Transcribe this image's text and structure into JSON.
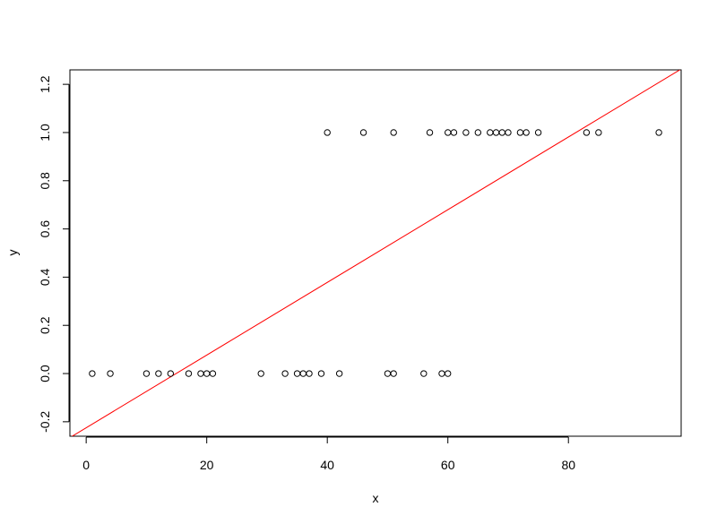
{
  "chart_data": {
    "type": "scatter",
    "title": "",
    "xlabel": "x",
    "ylabel": "y",
    "xlim": [
      -2.7,
      98.7
    ],
    "ylim": [
      -0.26,
      1.26
    ],
    "x_ticks": [
      0,
      20,
      40,
      60,
      80
    ],
    "y_ticks": [
      -0.2,
      0.0,
      0.2,
      0.4,
      0.6,
      0.8,
      1.0,
      1.2
    ],
    "grid": false,
    "legend": "none",
    "marker": "open-circle",
    "point_color": "#000000",
    "series": [
      {
        "points": [
          {
            "x": 1,
            "y": 0
          },
          {
            "x": 4,
            "y": 0
          },
          {
            "x": 10,
            "y": 0
          },
          {
            "x": 12,
            "y": 0
          },
          {
            "x": 14,
            "y": 0
          },
          {
            "x": 17,
            "y": 0
          },
          {
            "x": 19,
            "y": 0
          },
          {
            "x": 20,
            "y": 0
          },
          {
            "x": 21,
            "y": 0
          },
          {
            "x": 29,
            "y": 0
          },
          {
            "x": 33,
            "y": 0
          },
          {
            "x": 35,
            "y": 0
          },
          {
            "x": 36,
            "y": 0
          },
          {
            "x": 37,
            "y": 0
          },
          {
            "x": 39,
            "y": 0
          },
          {
            "x": 42,
            "y": 0
          },
          {
            "x": 50,
            "y": 0
          },
          {
            "x": 51,
            "y": 0
          },
          {
            "x": 56,
            "y": 0
          },
          {
            "x": 59,
            "y": 0
          },
          {
            "x": 60,
            "y": 0
          },
          {
            "x": 40,
            "y": 1
          },
          {
            "x": 46,
            "y": 1
          },
          {
            "x": 51,
            "y": 1
          },
          {
            "x": 57,
            "y": 1
          },
          {
            "x": 60,
            "y": 1
          },
          {
            "x": 61,
            "y": 1
          },
          {
            "x": 63,
            "y": 1
          },
          {
            "x": 65,
            "y": 1
          },
          {
            "x": 67,
            "y": 1
          },
          {
            "x": 68,
            "y": 1
          },
          {
            "x": 69,
            "y": 1
          },
          {
            "x": 70,
            "y": 1
          },
          {
            "x": 72,
            "y": 1
          },
          {
            "x": 73,
            "y": 1
          },
          {
            "x": 75,
            "y": 1
          },
          {
            "x": 83,
            "y": 1
          },
          {
            "x": 85,
            "y": 1
          },
          {
            "x": 95,
            "y": 1
          }
        ]
      }
    ],
    "fit_line": {
      "color": "#ff0000",
      "intercept": -0.225,
      "slope": 0.01508
    }
  }
}
